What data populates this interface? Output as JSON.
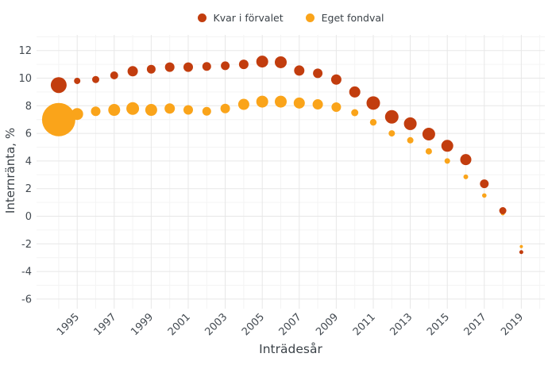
{
  "legend": {
    "items": [
      {
        "id": "kvar",
        "label": "Kvar i förvalet",
        "color": "#c23d0e"
      },
      {
        "id": "eget",
        "label": "Eget fondval",
        "color": "#faa41a"
      }
    ]
  },
  "chart_data": {
    "type": "scatter",
    "subtype": "bubble",
    "title": "",
    "xlabel": "Inträdesår",
    "ylabel": "Internränta, %",
    "x_tick_labels": [
      1995,
      1997,
      1999,
      2001,
      2003,
      2005,
      2007,
      2009,
      2011,
      2013,
      2015,
      2017,
      2019
    ],
    "y_tick_labels": [
      12,
      10,
      8,
      6,
      4,
      2,
      0,
      -2,
      -4,
      -6
    ],
    "xlim_years": [
      1993.8,
      2020.2
    ],
    "ylim": [
      -6.8,
      13.2
    ],
    "grid": "major-and-minor, light gray, minor at every year / every 1 unit",
    "legend_position": "top-center",
    "x_years": [
      1994,
      1995,
      1996,
      1997,
      1998,
      1999,
      2000,
      2001,
      2002,
      2003,
      2004,
      2005,
      2006,
      2007,
      2008,
      2009,
      2010,
      2011,
      2012,
      2013,
      2014,
      2015,
      2016,
      2017,
      2018,
      2019
    ],
    "series": [
      {
        "name": "Kvar i förvalet",
        "color": "#c23d0e",
        "values": [
          9.5,
          9.8,
          9.9,
          10.2,
          10.5,
          10.65,
          10.8,
          10.8,
          10.85,
          10.9,
          11.0,
          11.2,
          11.15,
          10.55,
          10.35,
          9.9,
          9.0,
          8.2,
          7.2,
          6.7,
          5.95,
          5.1,
          4.1,
          2.35,
          0.4,
          -2.6
        ],
        "bubble_radius_px": [
          10,
          4,
          4.5,
          5,
          6.5,
          5.5,
          6,
          6,
          5.5,
          5.5,
          6,
          7.5,
          7.5,
          6.5,
          6,
          6.5,
          7,
          8.5,
          8.5,
          8,
          8,
          7.5,
          7,
          5.5,
          4.5,
          2.5
        ]
      },
      {
        "name": "Eget fondval",
        "color": "#faa41a",
        "values": [
          7.0,
          7.4,
          7.6,
          7.7,
          7.8,
          7.7,
          7.8,
          7.7,
          7.6,
          7.8,
          8.1,
          8.3,
          8.3,
          8.2,
          8.1,
          7.9,
          7.5,
          6.8,
          6.0,
          5.5,
          4.7,
          4.0,
          2.85,
          1.5,
          0.2,
          -2.2
        ],
        "bubble_radius_px": [
          21,
          7.5,
          6,
          7.5,
          8,
          7.5,
          6.5,
          6,
          5.5,
          6,
          7,
          7.5,
          7.5,
          7,
          6.5,
          6,
          4.5,
          4.2,
          4,
          4,
          4,
          3.5,
          3,
          2.8,
          2.5,
          2
        ]
      }
    ]
  }
}
